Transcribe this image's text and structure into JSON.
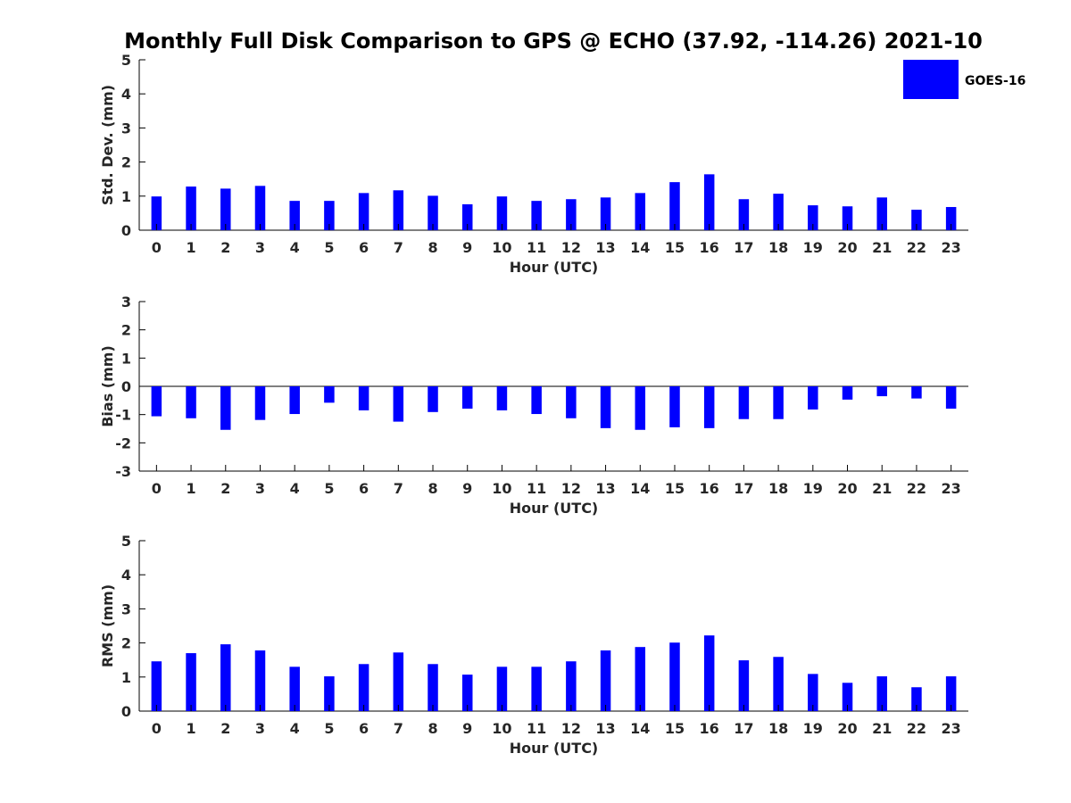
{
  "chart_data": {
    "title": "Monthly Full Disk Comparison to GPS @ ECHO (37.92, -114.26) 2021-10",
    "legend": {
      "label": "GOES-16",
      "color": "#0000ff",
      "placement": "top-right"
    },
    "panels": [
      {
        "type": "bar",
        "ylabel": "Std. Dev. (mm)",
        "xlabel": "Hour (UTC)",
        "ylim": [
          0,
          5
        ],
        "yticks": [
          "0",
          "1",
          "2",
          "3",
          "4",
          "5"
        ],
        "categories": [
          "0",
          "1",
          "2",
          "3",
          "4",
          "5",
          "6",
          "7",
          "8",
          "9",
          "10",
          "11",
          "12",
          "13",
          "14",
          "15",
          "16",
          "17",
          "18",
          "19",
          "20",
          "21",
          "22",
          "23"
        ],
        "values": [
          0.99,
          1.28,
          1.22,
          1.3,
          0.86,
          0.86,
          1.09,
          1.17,
          1.01,
          0.76,
          0.99,
          0.86,
          0.91,
          0.96,
          1.09,
          1.41,
          1.64,
          0.91,
          1.07,
          0.73,
          0.7,
          0.96,
          0.6,
          0.68
        ]
      },
      {
        "type": "bar",
        "ylabel": "Bias (mm)",
        "xlabel": "Hour (UTC)",
        "ylim": [
          -3,
          3
        ],
        "yticks": [
          "-3",
          "-2",
          "-1",
          "0",
          "1",
          "2",
          "3"
        ],
        "zero_line": true,
        "categories": [
          "0",
          "1",
          "2",
          "3",
          "4",
          "5",
          "6",
          "7",
          "8",
          "9",
          "10",
          "11",
          "12",
          "13",
          "14",
          "15",
          "16",
          "17",
          "18",
          "19",
          "20",
          "21",
          "22",
          "23"
        ],
        "values": [
          -1.06,
          -1.13,
          -1.54,
          -1.19,
          -0.98,
          -0.58,
          -0.85,
          -1.25,
          -0.91,
          -0.79,
          -0.85,
          -0.98,
          -1.13,
          -1.48,
          -1.54,
          -1.45,
          -1.48,
          -1.16,
          -1.16,
          -0.82,
          -0.47,
          -0.35,
          -0.43,
          -0.79
        ]
      },
      {
        "type": "bar",
        "ylabel": "RMS (mm)",
        "xlabel": "Hour (UTC)",
        "ylim": [
          0,
          5
        ],
        "yticks": [
          "0",
          "1",
          "2",
          "3",
          "4",
          "5"
        ],
        "categories": [
          "0",
          "1",
          "2",
          "3",
          "4",
          "5",
          "6",
          "7",
          "8",
          "9",
          "10",
          "11",
          "12",
          "13",
          "14",
          "15",
          "16",
          "17",
          "18",
          "19",
          "20",
          "21",
          "22",
          "23"
        ],
        "values": [
          1.46,
          1.7,
          1.96,
          1.78,
          1.3,
          1.02,
          1.38,
          1.72,
          1.38,
          1.07,
          1.3,
          1.3,
          1.46,
          1.78,
          1.88,
          2.01,
          2.22,
          1.49,
          1.59,
          1.09,
          0.83,
          1.02,
          0.7,
          1.02
        ]
      }
    ]
  }
}
